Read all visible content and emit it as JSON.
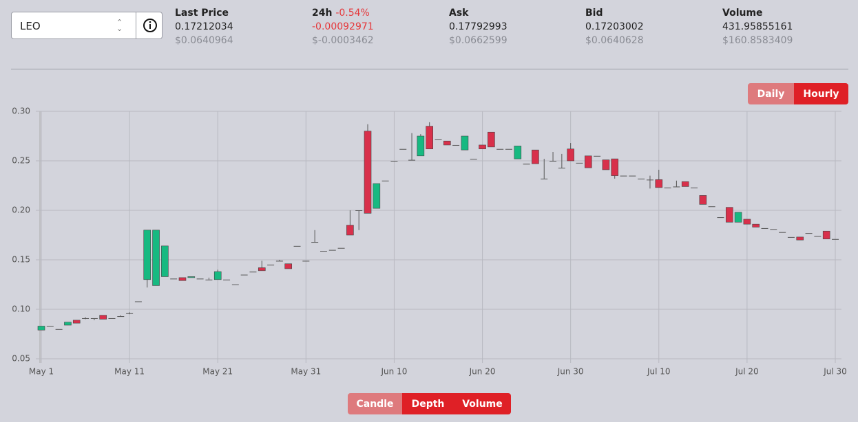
{
  "selector": "LEO",
  "stats": [
    {
      "label": "Last Price",
      "value": "0.17212034",
      "usd": "$0.0640964"
    },
    {
      "label": "24h",
      "change": "-0.54%",
      "value": "-0.00092971",
      "usd": "$-0.0003462"
    },
    {
      "label": "Ask",
      "value": "0.17792993",
      "usd": "$0.0662599"
    },
    {
      "label": "Bid",
      "value": "0.17203002",
      "usd": "$0.0640628"
    },
    {
      "label": "Volume",
      "value": "431.95855161",
      "usd": "$160.8583409"
    }
  ],
  "interval_buttons": [
    "Daily",
    "Hourly"
  ],
  "view_buttons": [
    "Candle",
    "Depth",
    "Volume"
  ],
  "chart_data": {
    "type": "candlestick",
    "up_color": "#17b981",
    "down_color": "#d8304b",
    "grid": true,
    "ylim": [
      0.05,
      0.3
    ],
    "yticks": [
      0.05,
      {
        "value": 0.1,
        "label": "0.10"
      },
      0.15,
      {
        "value": 0.2,
        "label": "0.20"
      },
      0.25,
      {
        "value": 0.3,
        "label": "0.30"
      }
    ],
    "categories": [
      "May 1",
      null,
      null,
      null,
      null,
      null,
      null,
      null,
      null,
      null,
      "May 11",
      null,
      null,
      null,
      null,
      null,
      null,
      null,
      null,
      null,
      "May 21",
      null,
      null,
      null,
      null,
      null,
      null,
      null,
      null,
      null,
      "May 31",
      null,
      null,
      null,
      null,
      null,
      null,
      null,
      null,
      null,
      "Jun 10",
      null,
      null,
      null,
      null,
      null,
      null,
      null,
      null,
      null,
      "Jun 20",
      null,
      null,
      null,
      null,
      null,
      null,
      null,
      null,
      null,
      "Jun 30",
      null,
      null,
      null,
      null,
      null,
      null,
      null,
      null,
      null,
      "Jul 10",
      null,
      null,
      null,
      null,
      null,
      null,
      null,
      null,
      null,
      "Jul 20",
      null,
      null,
      null,
      null,
      null,
      null,
      null,
      null,
      null,
      "Jul 30"
    ],
    "open": [
      0.079,
      0.083,
      0.08,
      0.084,
      0.089,
      0.091,
      0.091,
      0.094,
      0.091,
      0.093,
      0.096,
      0.108,
      0.13,
      0.124,
      0.133,
      0.131,
      0.132,
      0.132,
      0.131,
      0.13,
      0.13,
      0.13,
      0.125,
      0.135,
      0.138,
      0.142,
      0.145,
      0.149,
      0.146,
      0.164,
      0.149,
      0.168,
      0.159,
      0.16,
      0.162,
      0.185,
      0.2,
      0.28,
      0.202,
      0.23,
      0.25,
      0.262,
      0.251,
      0.255,
      0.285,
      0.272,
      0.27,
      0.266,
      0.261,
      0.252,
      0.266,
      0.279,
      0.262,
      0.262,
      0.252,
      0.247,
      0.261,
      0.232,
      0.25,
      0.243,
      0.262,
      0.248,
      0.255,
      0.255,
      0.251,
      0.252,
      0.235,
      0.235,
      0.232,
      0.231,
      0.231,
      0.223,
      0.224,
      0.229,
      0.223,
      0.215,
      0.204,
      0.193,
      0.203,
      0.188,
      0.191,
      0.186,
      0.182,
      0.181,
      0.178,
      0.173,
      0.173,
      0.177,
      0.174,
      0.179,
      0.171
    ],
    "high": [
      0.083,
      0.083,
      0.08,
      0.087,
      0.089,
      0.092,
      0.091,
      0.094,
      0.091,
      0.094,
      0.097,
      0.108,
      0.18,
      0.18,
      0.164,
      0.131,
      0.132,
      0.133,
      0.131,
      0.132,
      0.14,
      0.13,
      0.125,
      0.135,
      0.138,
      0.149,
      0.145,
      0.15,
      0.146,
      0.164,
      0.149,
      0.18,
      0.159,
      0.16,
      0.162,
      0.2,
      0.2,
      0.287,
      0.227,
      0.23,
      0.25,
      0.262,
      0.278,
      0.277,
      0.289,
      0.272,
      0.27,
      0.266,
      0.275,
      0.252,
      0.266,
      0.279,
      0.262,
      0.262,
      0.265,
      0.247,
      0.261,
      0.252,
      0.259,
      0.257,
      0.268,
      0.248,
      0.255,
      0.255,
      0.251,
      0.252,
      0.235,
      0.235,
      0.232,
      0.235,
      0.241,
      0.223,
      0.23,
      0.229,
      0.223,
      0.215,
      0.204,
      0.193,
      0.203,
      0.198,
      0.191,
      0.186,
      0.182,
      0.181,
      0.178,
      0.173,
      0.173,
      0.177,
      0.174,
      0.179,
      0.171
    ],
    "low": [
      0.079,
      0.083,
      0.08,
      0.084,
      0.086,
      0.09,
      0.089,
      0.09,
      0.091,
      0.093,
      0.095,
      0.108,
      0.122,
      0.124,
      0.133,
      0.131,
      0.129,
      0.132,
      0.131,
      0.13,
      0.13,
      0.13,
      0.125,
      0.135,
      0.138,
      0.139,
      0.145,
      0.149,
      0.141,
      0.164,
      0.149,
      0.168,
      0.159,
      0.16,
      0.162,
      0.175,
      0.18,
      0.197,
      0.202,
      0.23,
      0.25,
      0.262,
      0.251,
      0.255,
      0.262,
      0.272,
      0.266,
      0.266,
      0.261,
      0.252,
      0.262,
      0.264,
      0.262,
      0.262,
      0.252,
      0.247,
      0.247,
      0.232,
      0.25,
      0.243,
      0.25,
      0.248,
      0.243,
      0.255,
      0.241,
      0.232,
      0.235,
      0.235,
      0.232,
      0.222,
      0.223,
      0.223,
      0.224,
      0.224,
      0.223,
      0.206,
      0.204,
      0.193,
      0.188,
      0.188,
      0.186,
      0.183,
      0.182,
      0.181,
      0.178,
      0.173,
      0.17,
      0.177,
      0.174,
      0.171,
      0.171
    ],
    "close": [
      0.083,
      0.083,
      0.08,
      0.087,
      0.086,
      0.091,
      0.091,
      0.09,
      0.091,
      0.093,
      0.096,
      0.108,
      0.18,
      0.18,
      0.164,
      0.131,
      0.129,
      0.133,
      0.131,
      0.13,
      0.138,
      0.13,
      0.125,
      0.135,
      0.138,
      0.139,
      0.145,
      0.149,
      0.141,
      0.164,
      0.149,
      0.168,
      0.159,
      0.16,
      0.162,
      0.175,
      0.2,
      0.197,
      0.227,
      0.23,
      0.25,
      0.262,
      0.251,
      0.275,
      0.262,
      0.272,
      0.266,
      0.266,
      0.275,
      0.252,
      0.262,
      0.264,
      0.262,
      0.262,
      0.265,
      0.247,
      0.247,
      0.232,
      0.25,
      0.243,
      0.25,
      0.248,
      0.243,
      0.255,
      0.241,
      0.235,
      0.235,
      0.235,
      0.232,
      0.231,
      0.223,
      0.223,
      0.224,
      0.224,
      0.223,
      0.206,
      0.204,
      0.193,
      0.188,
      0.198,
      0.186,
      0.183,
      0.182,
      0.181,
      0.178,
      0.173,
      0.17,
      0.177,
      0.174,
      0.171,
      0.171
    ]
  }
}
